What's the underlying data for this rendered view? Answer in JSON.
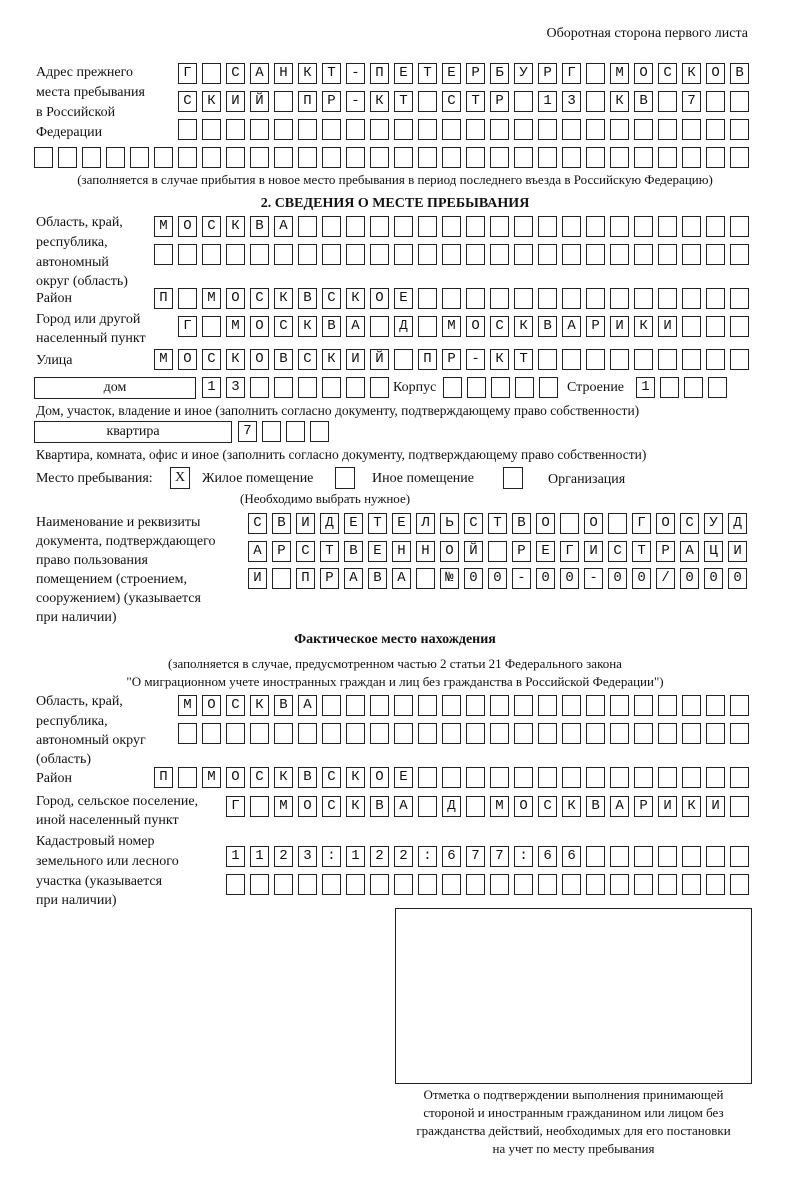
{
  "header": {
    "page_label": "Оборотная сторона первого листа"
  },
  "previous_address": {
    "label": [
      "Адрес прежнего",
      "места пребывания",
      "в Российской",
      "Федерации"
    ],
    "rows": [
      "Г САНКТ-ПЕТЕРБУРГ МОСКОВ",
      "СКИЙ ПР-КТ СТР 13 КВ 7",
      "",
      ""
    ],
    "note": "(заполняется в случае прибытия в новое место пребывания в период последнего въезда в Российскую Федерацию)"
  },
  "section2": {
    "title": "2. СВЕДЕНИЯ О МЕСТЕ ПРЕБЫВАНИЯ",
    "region_label": [
      "Область, край,",
      "республика,",
      "автономный",
      "округ (область)"
    ],
    "region_rows": [
      "МОСКВА",
      ""
    ],
    "district_label": "Район",
    "district": "П МОСКВСКОЕ",
    "city_label": [
      "Город или другой",
      "населенный пункт"
    ],
    "city": "Г МОСКВА Д МОСКВАРИКИ",
    "street_label": "Улица",
    "street": "МОСКОВСКИЙ ПР-КТ",
    "house_type": "дом",
    "house_number": "13",
    "building_label": "Корпус",
    "building": "",
    "structure_label": "Строение",
    "structure": "1",
    "house_note": "Дом, участок, владение и иное (заполнить согласно документу, подтверждающему право собственности)",
    "apartment_type": "квартира",
    "apartment_number": "7",
    "apartment_note": "Квартира, комната, офис и иное (заполнить согласно документу, подтверждающему право собственности)",
    "stay_label": "Место пребывания:",
    "stay_options": [
      {
        "label": "Жилое помещение",
        "mark": "X"
      },
      {
        "label": "Иное помещение",
        "mark": ""
      },
      {
        "label": "Организация",
        "mark": ""
      }
    ],
    "stay_note": "(Необходимо выбрать нужное)",
    "document_label": [
      "Наименование и реквизиты",
      "документа, подтверждающего",
      "право пользования",
      "помещением (строением,",
      "сооружением) (указывается",
      "при наличии)"
    ],
    "document_rows": [
      "СВИДЕТЕЛЬСТВО О ГОСУД",
      "АРСТВЕННОЙ РЕГИСТРАЦИ",
      "И ПРАВА №00-00-00/000"
    ]
  },
  "actual": {
    "title": "Фактическое место нахождения",
    "note1": "(заполняется в случае, предусмотренном частью 2 статьи 21 Федерального закона",
    "note2": "\"О миграционном учете иностранных граждан и лиц без гражданства в Российской Федерации\")",
    "region_label": [
      "Область, край,",
      "республика,",
      "автономный округ",
      "(область)"
    ],
    "region_rows": [
      "МОСКВА",
      ""
    ],
    "district_label": "Район",
    "district": "П МОСКВСКОЕ",
    "city_label": [
      "Город, сельское поселение,",
      "иной населенный пункт"
    ],
    "city": "Г МОСКВА Д МОСКВАРИКИ",
    "cadastral_label": [
      "Кадастровый номер",
      "земельного или лесного",
      "участка (указывается",
      "при наличии)"
    ],
    "cadastral_rows": [
      "1123:122:677:66",
      ""
    ]
  },
  "confirmation": {
    "caption": [
      "Отметка о подтверждении выполнения принимающей",
      "стороной и иностранным гражданином или лицом без",
      "гражданства действий, необходимых для его постановки",
      "на учет по месту пребывания"
    ]
  }
}
